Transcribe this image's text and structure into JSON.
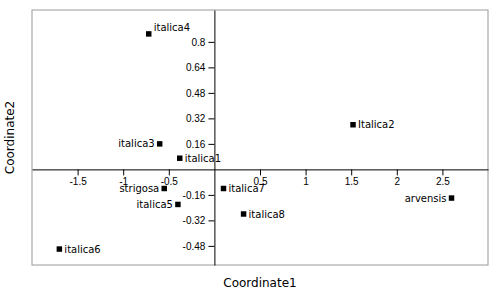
{
  "chart_data": {
    "type": "scatter",
    "x": [
      -0.72,
      1.52,
      -0.6,
      -0.38,
      -0.55,
      -0.4,
      0.1,
      0.32,
      -1.7,
      2.6
    ],
    "values": [
      0.85,
      0.28,
      0.16,
      0.07,
      -0.12,
      -0.22,
      -0.12,
      -0.28,
      -0.5,
      -0.18
    ],
    "labels": [
      "italica4",
      "Italica2",
      "italica3",
      "italica1",
      "strigosa",
      "italica5",
      "italica7",
      "italica8",
      "italica6",
      "arvensis"
    ],
    "xlabel": "Coordinate1",
    "ylabel": "Coordinate2",
    "xlim": [
      -2.0,
      3.0
    ],
    "ylim": [
      -0.6,
      1.0
    ],
    "xticks": [
      -1.5,
      -1.0,
      -0.5,
      0.5,
      1.0,
      1.5,
      2.0,
      2.5
    ],
    "yticks": [
      -0.48,
      -0.32,
      -0.16,
      0.16,
      0.32,
      0.48,
      0.64,
      0.8
    ],
    "color": "#000000",
    "marker": "square"
  }
}
